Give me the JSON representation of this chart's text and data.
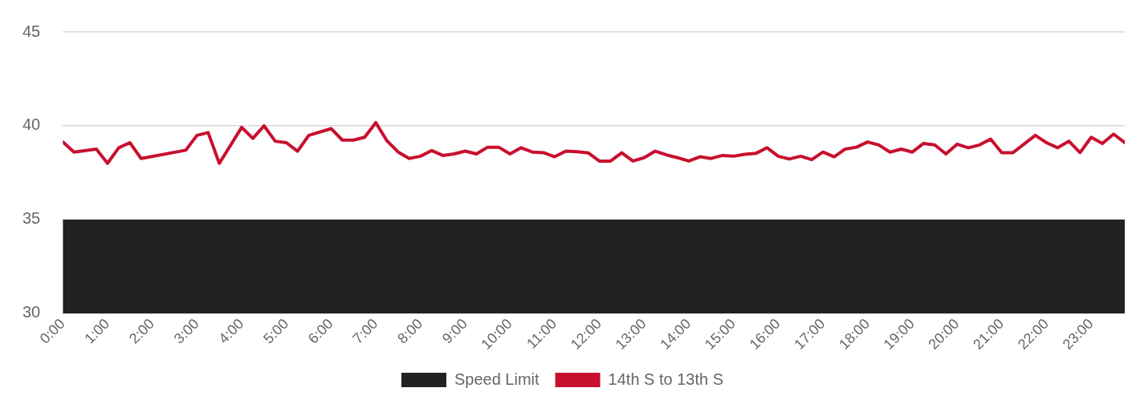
{
  "chart_data": {
    "type": "line",
    "xlim": [
      0,
      23.75
    ],
    "xticks": [
      {
        "value": 0,
        "label": "0:00"
      },
      {
        "value": 1,
        "label": "1:00"
      },
      {
        "value": 2,
        "label": "2:00"
      },
      {
        "value": 3,
        "label": "3:00"
      },
      {
        "value": 4,
        "label": "4:00"
      },
      {
        "value": 5,
        "label": "5:00"
      },
      {
        "value": 6,
        "label": "6:00"
      },
      {
        "value": 7,
        "label": "7:00"
      },
      {
        "value": 8,
        "label": "8:00"
      },
      {
        "value": 9,
        "label": "9:00"
      },
      {
        "value": 10,
        "label": "10:00"
      },
      {
        "value": 11,
        "label": "11:00"
      },
      {
        "value": 12,
        "label": "12:00"
      },
      {
        "value": 13,
        "label": "13:00"
      },
      {
        "value": 14,
        "label": "14:00"
      },
      {
        "value": 15,
        "label": "15:00"
      },
      {
        "value": 16,
        "label": "16:00"
      },
      {
        "value": 17,
        "label": "17:00"
      },
      {
        "value": 18,
        "label": "18:00"
      },
      {
        "value": 19,
        "label": "19:00"
      },
      {
        "value": 20,
        "label": "20:00"
      },
      {
        "value": 21,
        "label": "21:00"
      },
      {
        "value": 22,
        "label": "22:00"
      },
      {
        "value": 23,
        "label": "23:00"
      }
    ],
    "ylim": [
      30,
      45
    ],
    "yticks": [
      30,
      35,
      40,
      45
    ],
    "grid": "y",
    "legend": "bottom",
    "marker": "none",
    "series": [
      {
        "name": "Speed Limit",
        "type": "area",
        "color": "#222222",
        "x": [
          0,
          23.75
        ],
        "values": [
          35,
          35
        ]
      },
      {
        "name": "14th S to 13th S",
        "type": "line",
        "color": "#c8102e",
        "x": [
          0,
          0.25,
          0.75,
          1,
          1.25,
          1.5,
          1.75,
          2.75,
          3,
          3.25,
          3.5,
          4,
          4.25,
          4.5,
          4.75,
          5,
          5.25,
          5.5,
          6,
          6.25,
          6.5,
          6.75,
          7,
          7.25,
          7.5,
          7.75,
          8,
          8.25,
          8.5,
          8.75,
          9,
          9.25,
          9.5,
          9.75,
          10,
          10.25,
          10.5,
          10.75,
          11,
          11.25,
          11.5,
          11.75,
          12,
          12.25,
          12.5,
          12.75,
          13,
          13.25,
          13.5,
          13.75,
          14,
          14.25,
          14.5,
          14.75,
          15,
          15.25,
          15.5,
          15.75,
          16,
          16.25,
          16.5,
          16.75,
          17,
          17.25,
          17.5,
          17.75,
          18,
          18.25,
          18.5,
          18.75,
          19,
          19.25,
          19.5,
          19.75,
          20,
          20.25,
          20.5,
          20.75,
          21,
          21.25,
          21.75,
          22,
          22.25,
          22.5,
          22.75,
          23,
          23.25,
          23.5,
          23.75
        ],
        "values": [
          39.14,
          38.6,
          38.76,
          38.0,
          38.83,
          39.1,
          38.26,
          38.7,
          39.49,
          39.64,
          38.0,
          39.92,
          39.33,
          40.0,
          39.18,
          39.1,
          38.65,
          39.49,
          39.85,
          39.24,
          39.24,
          39.39,
          40.17,
          39.2,
          38.6,
          38.26,
          38.38,
          38.68,
          38.42,
          38.5,
          38.65,
          38.5,
          38.86,
          38.86,
          38.5,
          38.83,
          38.6,
          38.57,
          38.35,
          38.65,
          38.62,
          38.56,
          38.12,
          38.12,
          38.56,
          38.12,
          38.3,
          38.65,
          38.45,
          38.3,
          38.12,
          38.35,
          38.26,
          38.42,
          38.38,
          38.48,
          38.53,
          38.83,
          38.38,
          38.23,
          38.38,
          38.2,
          38.6,
          38.35,
          38.76,
          38.86,
          39.14,
          38.98,
          38.6,
          38.76,
          38.6,
          39.06,
          38.98,
          38.5,
          39.02,
          38.83,
          38.98,
          39.29,
          38.57,
          38.57,
          39.49,
          39.1,
          38.83,
          39.18,
          38.57,
          39.39,
          39.06,
          39.56,
          39.1
        ]
      }
    ]
  }
}
